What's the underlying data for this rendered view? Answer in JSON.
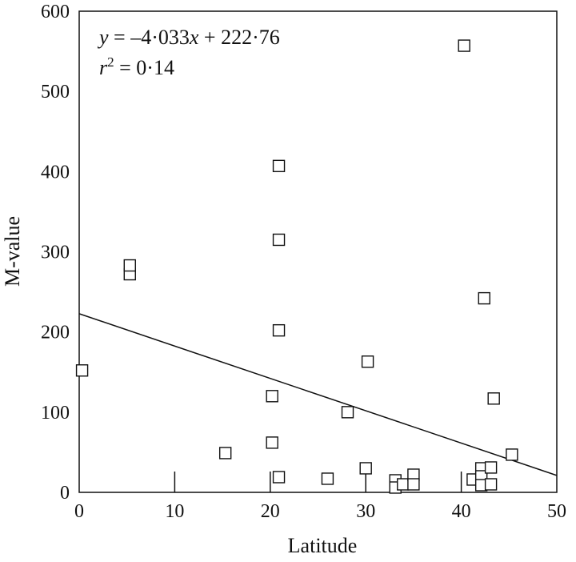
{
  "chart_data": {
    "type": "scatter",
    "title": "",
    "xlabel": "Latitude",
    "ylabel": "M-value",
    "xlim": [
      0,
      50
    ],
    "ylim": [
      0,
      600
    ],
    "xticks": [
      0,
      10,
      20,
      30,
      40,
      50
    ],
    "yticks": [
      0,
      100,
      200,
      300,
      400,
      500,
      600
    ],
    "xtick_labels": [
      "0",
      "10",
      "20",
      "30",
      "40",
      "50"
    ],
    "ytick_labels": [
      "0",
      "100",
      "200",
      "300",
      "400",
      "500",
      "600"
    ],
    "grid": false,
    "legend": "none",
    "annotation": {
      "equation": {
        "y": "y",
        "eq_rhs": " = –4·033",
        "x": "x",
        "tail": " + 222·76"
      },
      "r2": {
        "r": "r",
        "sup": "2",
        "rest": " = 0·14"
      }
    },
    "regression": {
      "slope": -4.033,
      "intercept": 222.76
    },
    "points": [
      {
        "x": 0.3,
        "y": 152
      },
      {
        "x": 5.3,
        "y": 272
      },
      {
        "x": 5.3,
        "y": 283
      },
      {
        "x": 15.3,
        "y": 49
      },
      {
        "x": 20.2,
        "y": 62
      },
      {
        "x": 20.2,
        "y": 120
      },
      {
        "x": 20.9,
        "y": 19
      },
      {
        "x": 20.9,
        "y": 202
      },
      {
        "x": 20.9,
        "y": 315
      },
      {
        "x": 20.9,
        "y": 407
      },
      {
        "x": 26.0,
        "y": 17
      },
      {
        "x": 28.1,
        "y": 100
      },
      {
        "x": 30.0,
        "y": 30
      },
      {
        "x": 30.2,
        "y": 163
      },
      {
        "x": 33.1,
        "y": 15
      },
      {
        "x": 33.1,
        "y": 6
      },
      {
        "x": 33.9,
        "y": 10
      },
      {
        "x": 35.0,
        "y": 22
      },
      {
        "x": 35.0,
        "y": 10
      },
      {
        "x": 40.3,
        "y": 557
      },
      {
        "x": 41.2,
        "y": 16
      },
      {
        "x": 42.1,
        "y": 30
      },
      {
        "x": 42.1,
        "y": 20
      },
      {
        "x": 42.1,
        "y": 9
      },
      {
        "x": 42.4,
        "y": 242
      },
      {
        "x": 43.1,
        "y": 31
      },
      {
        "x": 43.1,
        "y": 10
      },
      {
        "x": 43.4,
        "y": 117
      },
      {
        "x": 45.3,
        "y": 47
      }
    ],
    "bottom_marks": [
      10,
      20,
      30,
      40
    ]
  },
  "colors": {
    "ink": "#111111",
    "background": "#ffffff",
    "marker_fill": "#ffffff"
  }
}
